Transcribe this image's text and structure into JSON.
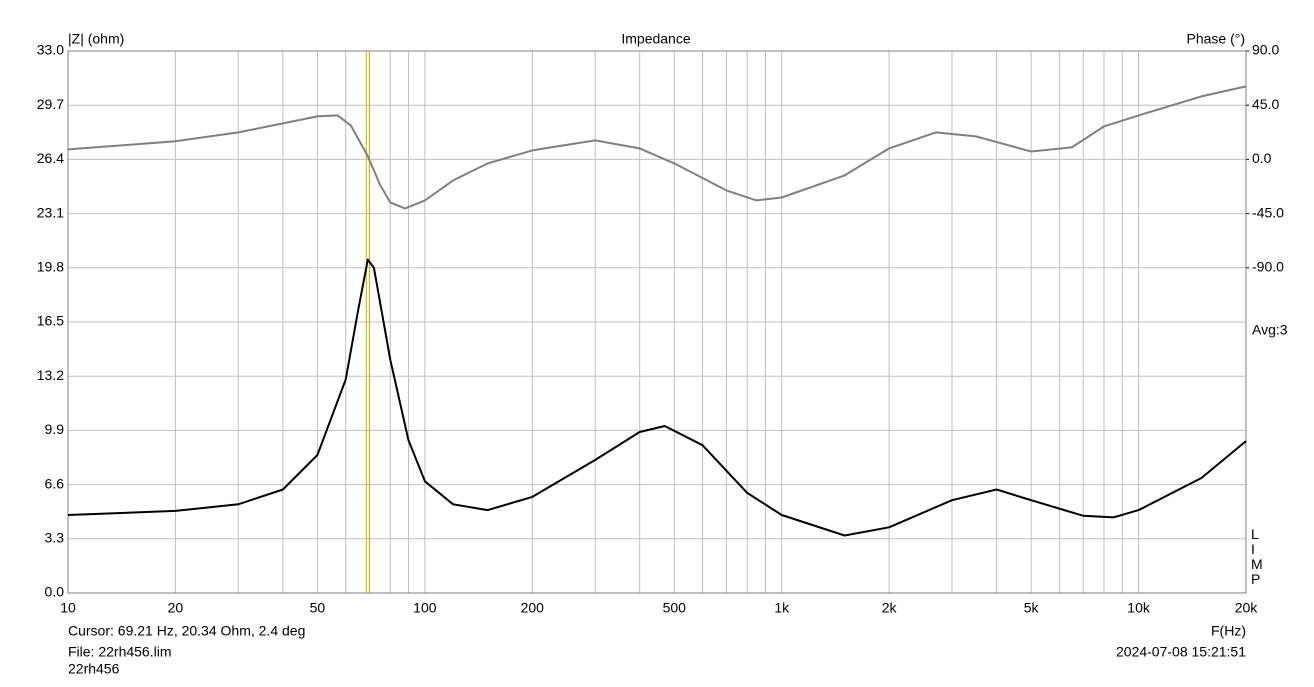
{
  "chart_data": {
    "type": "line",
    "title": "Impedance",
    "y_label": "|Z| (ohm)",
    "y2_label": "Phase (°)",
    "x_label": "F(Hz)",
    "side_note": "Avg:3",
    "brand": "LIMP",
    "cursor_text": "Cursor: 69.21 Hz, 20.34 Ohm, 2.4 deg",
    "file_text": "File: 22rh456.lim",
    "name_text": "22rh456",
    "date_text": "2024-07-08 15:21:51",
    "cursor_x": 69.21,
    "cursor_color": "#c8b400",
    "xlog": true,
    "grid": true,
    "xlim": [
      10,
      20000
    ],
    "xticks": [
      10,
      20,
      50,
      100,
      200,
      500,
      {
        "value": 1000,
        "label": "1k"
      },
      {
        "value": 2000,
        "label": "2k"
      },
      {
        "value": 5000,
        "label": "5k"
      },
      {
        "value": 10000,
        "label": "10k"
      },
      {
        "value": 20000,
        "label": "20k"
      }
    ],
    "xgrid_minor": [
      30,
      40,
      60,
      70,
      80,
      90,
      300,
      400,
      600,
      700,
      800,
      900,
      3000,
      4000,
      6000,
      7000,
      8000,
      9000
    ],
    "ylim": [
      0,
      33
    ],
    "yticks": [
      {
        "value": 0,
        "label": "0.0"
      },
      {
        "value": 3.3,
        "label": "3.3"
      },
      {
        "value": 6.6,
        "label": "6.6"
      },
      {
        "value": 9.9,
        "label": "9.9"
      },
      {
        "value": 13.2,
        "label": "13.2"
      },
      {
        "value": 16.5,
        "label": "16.5"
      },
      {
        "value": 19.8,
        "label": "19.8"
      },
      {
        "value": 23.1,
        "label": "23.1"
      },
      {
        "value": 26.4,
        "label": "26.4"
      },
      {
        "value": 29.7,
        "label": "29.7"
      },
      {
        "value": 33,
        "label": "33.0"
      }
    ],
    "y2lim": [
      -360,
      90
    ],
    "y2ticks": [
      {
        "value": 90,
        "label": "90.0"
      },
      {
        "value": 45,
        "label": "45.0"
      },
      {
        "value": 0,
        "label": "0.0"
      },
      {
        "value": -45,
        "label": "-45.0"
      },
      {
        "value": -90,
        "label": "-90.0"
      }
    ],
    "series": [
      {
        "name": "Impedance",
        "color": "#000000",
        "x": [
          10,
          20,
          30,
          40,
          50,
          60,
          65,
          69.2,
          72,
          80,
          90,
          100,
          120,
          150,
          200,
          300,
          400,
          470,
          600,
          800,
          1000,
          1500,
          2000,
          3000,
          4000,
          5000,
          7000,
          8500,
          10000,
          15000,
          20000
        ],
        "values": [
          4.75,
          5.0,
          5.4,
          6.3,
          8.4,
          13.0,
          17.2,
          20.3,
          19.8,
          14.2,
          9.3,
          6.8,
          5.4,
          5.05,
          5.85,
          8.1,
          9.8,
          10.17,
          9.0,
          6.1,
          4.75,
          3.5,
          4.0,
          5.65,
          6.3,
          5.65,
          4.7,
          4.6,
          5.05,
          7.0,
          9.25
        ]
      },
      {
        "name": "Phase",
        "color": "#808080",
        "axis": "y2",
        "x": [
          10,
          20,
          30,
          40,
          50,
          57,
          62,
          69,
          75,
          80,
          88,
          100,
          120,
          150,
          200,
          300,
          400,
          500,
          700,
          850,
          1000,
          1500,
          2000,
          2700,
          3500,
          5000,
          6500,
          8000,
          10000,
          15000,
          20000
        ],
        "values": [
          8.3,
          15,
          22.4,
          29.9,
          35.7,
          36.5,
          28.2,
          3.3,
          -21.6,
          -35.7,
          -40.7,
          -34,
          -17.4,
          -3.3,
          7.5,
          15.8,
          9.1,
          -3.3,
          -25.7,
          -34,
          -31.6,
          -13.3,
          9.1,
          22.4,
          19.1,
          6.6,
          10,
          27.4,
          36.5,
          52.3,
          60.6
        ]
      }
    ]
  }
}
